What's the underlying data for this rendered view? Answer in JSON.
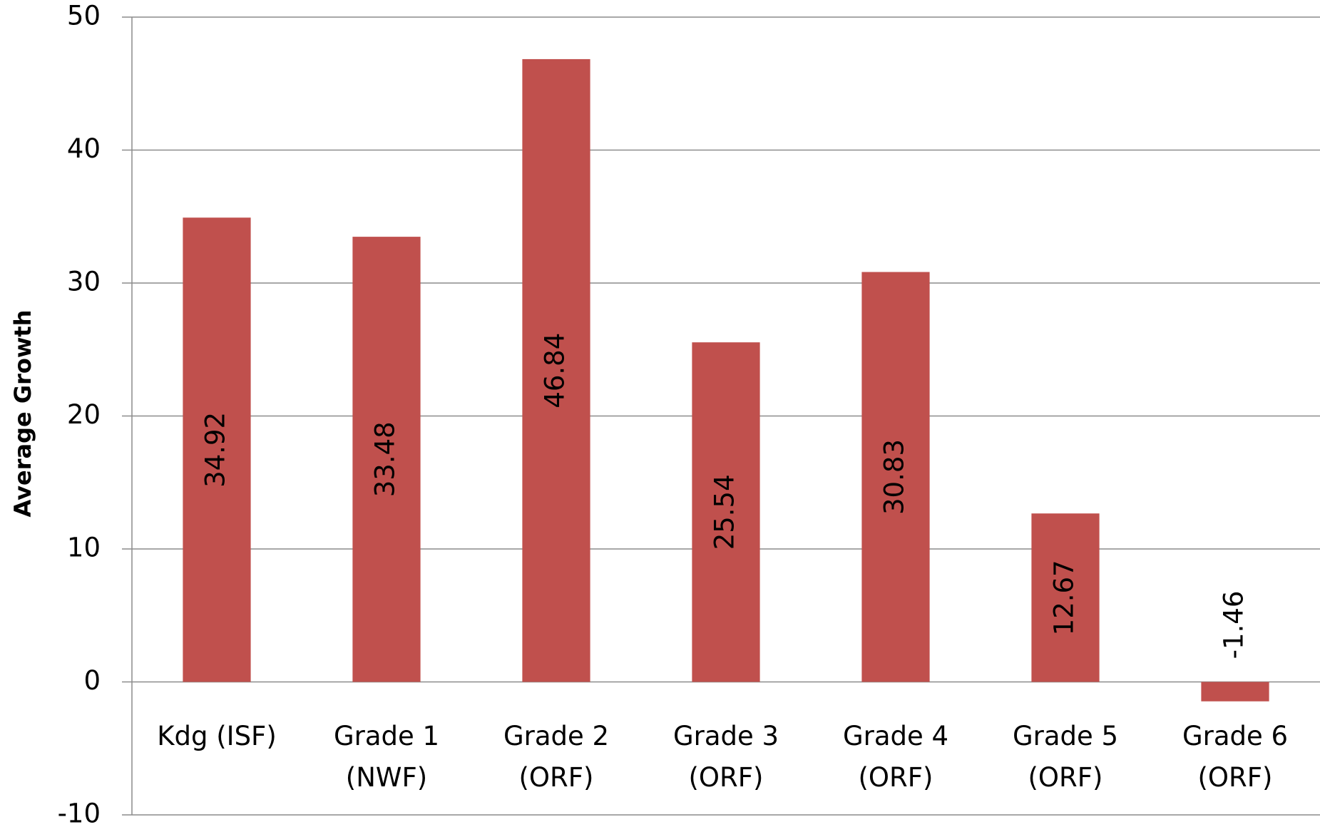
{
  "chart_data": {
    "type": "bar",
    "y_label": "Average Growth",
    "categories": [
      [
        "Kdg (ISF)"
      ],
      [
        "Grade 1",
        "(NWF)"
      ],
      [
        "Grade 2",
        "(ORF)"
      ],
      [
        "Grade 3",
        "(ORF)"
      ],
      [
        "Grade 4",
        "(ORF)"
      ],
      [
        "Grade 5",
        "(ORF)"
      ],
      [
        "Grade 6",
        "(ORF)"
      ]
    ],
    "values": [
      34.92,
      33.48,
      46.84,
      25.54,
      30.83,
      12.67,
      -1.46
    ],
    "color": "#c0504d",
    "ylim": [
      -10,
      50
    ],
    "yticks": [
      -10,
      0,
      10,
      20,
      30,
      40,
      50
    ],
    "grid": true
  }
}
